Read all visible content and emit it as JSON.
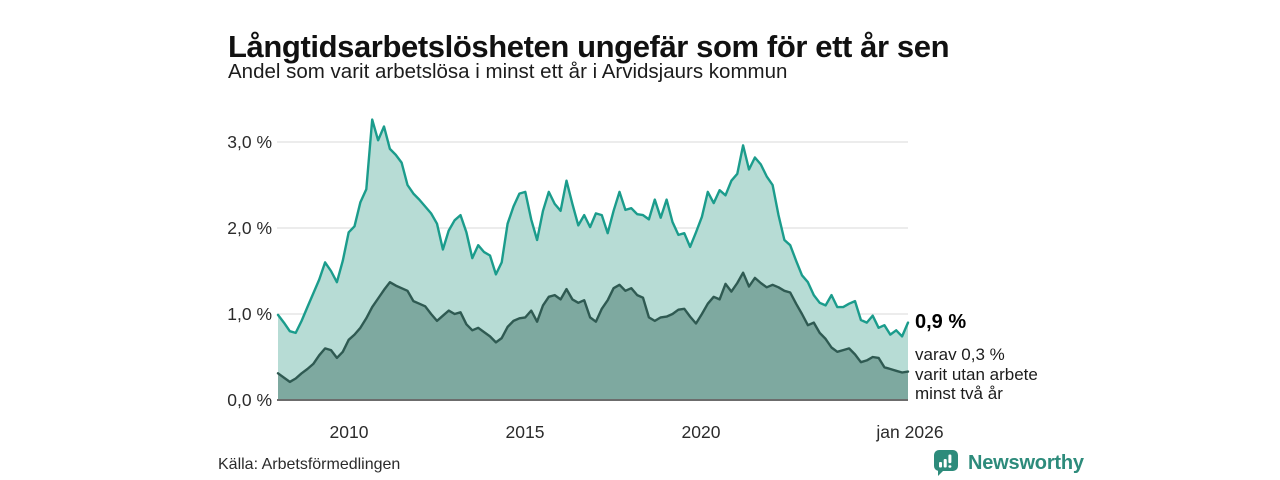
{
  "header": {
    "title": "Långtidsarbetslösheten ungefär som för ett år sen",
    "subtitle": "Andel som varit arbetslösa i minst ett år i Arvidsjaurs kommun"
  },
  "chart_data": {
    "type": "area",
    "title": "Långtidsarbetslösheten ungefär som för ett år sen",
    "subtitle": "Andel som varit arbetslösa i minst ett år i Arvidsjaurs kommun",
    "unit": "percent",
    "x_start": "jan 2008",
    "x_end": "jan 2026",
    "sample_interval_months": 2,
    "ylim": [
      0,
      3.5
    ],
    "grid": "horizontal",
    "legend_position": "right-annotation",
    "y_ticks": [
      {
        "label": "0,0 %",
        "value": 0
      },
      {
        "label": "1,0 %",
        "value": 1
      },
      {
        "label": "2,0 %",
        "value": 2
      },
      {
        "label": "3,0 %",
        "value": 3
      }
    ],
    "x_ticks": [
      {
        "label": "2010"
      },
      {
        "label": "2015"
      },
      {
        "label": "2020"
      },
      {
        "label": "jan 2026"
      }
    ],
    "series": [
      {
        "name": "Arbetslösa minst ett år",
        "latest_value": 0.9,
        "latest_label": "0,9 %",
        "line_color": "#1b9c8c",
        "fill_color": "#b7dcd5",
        "values": [
          0.99,
          0.9,
          0.8,
          0.78,
          0.92,
          1.08,
          1.24,
          1.4,
          1.6,
          1.5,
          1.37,
          1.62,
          1.95,
          2.02,
          2.3,
          2.45,
          3.26,
          3.02,
          3.18,
          2.92,
          2.85,
          2.76,
          2.5,
          2.4,
          2.33,
          2.25,
          2.17,
          2.05,
          1.75,
          1.97,
          2.09,
          2.15,
          1.95,
          1.65,
          1.8,
          1.72,
          1.68,
          1.46,
          1.6,
          2.05,
          2.25,
          2.4,
          2.42,
          2.1,
          1.86,
          2.2,
          2.42,
          2.28,
          2.2,
          2.55,
          2.28,
          2.03,
          2.15,
          2.01,
          2.17,
          2.15,
          1.94,
          2.2,
          2.42,
          2.21,
          2.23,
          2.16,
          2.15,
          2.1,
          2.33,
          2.12,
          2.33,
          2.07,
          1.92,
          1.94,
          1.78,
          1.95,
          2.13,
          2.42,
          2.29,
          2.44,
          2.38,
          2.55,
          2.63,
          2.96,
          2.68,
          2.82,
          2.74,
          2.6,
          2.5,
          2.15,
          1.86,
          1.8,
          1.62,
          1.45,
          1.37,
          1.22,
          1.13,
          1.1,
          1.22,
          1.08,
          1.08,
          1.12,
          1.15,
          0.93,
          0.9,
          0.98,
          0.84,
          0.87,
          0.76,
          0.81,
          0.74,
          0.9
        ]
      },
      {
        "name": "Arbetslösa minst två år",
        "latest_value": 0.33,
        "latest_label": "0,3 %",
        "line_color": "#2f5a52",
        "fill_color": "#7ea9a0",
        "values": [
          0.31,
          0.26,
          0.21,
          0.25,
          0.31,
          0.36,
          0.42,
          0.52,
          0.6,
          0.58,
          0.49,
          0.56,
          0.7,
          0.76,
          0.84,
          0.95,
          1.08,
          1.18,
          1.28,
          1.37,
          1.33,
          1.3,
          1.27,
          1.15,
          1.12,
          1.09,
          1.0,
          0.92,
          0.98,
          1.04,
          1.0,
          1.02,
          0.88,
          0.81,
          0.84,
          0.79,
          0.74,
          0.67,
          0.72,
          0.85,
          0.92,
          0.95,
          0.96,
          1.04,
          0.91,
          1.1,
          1.2,
          1.22,
          1.17,
          1.29,
          1.17,
          1.13,
          1.16,
          0.96,
          0.91,
          1.06,
          1.16,
          1.3,
          1.34,
          1.27,
          1.3,
          1.22,
          1.19,
          0.96,
          0.92,
          0.96,
          0.97,
          1.0,
          1.05,
          1.06,
          0.97,
          0.89,
          1.0,
          1.12,
          1.2,
          1.17,
          1.35,
          1.26,
          1.36,
          1.48,
          1.32,
          1.42,
          1.36,
          1.31,
          1.34,
          1.31,
          1.27,
          1.25,
          1.12,
          1.0,
          0.87,
          0.9,
          0.78,
          0.71,
          0.61,
          0.56,
          0.58,
          0.6,
          0.53,
          0.44,
          0.46,
          0.5,
          0.49,
          0.38,
          0.36,
          0.34,
          0.32,
          0.33
        ]
      }
    ],
    "colors": {
      "grid": "#e0e0e0",
      "axis": "#3c3c3c",
      "background": "#ffffff"
    }
  },
  "annotation": {
    "headline": "0,9 %",
    "lines": [
      "varav 0,3 %",
      "varit utan arbete",
      "minst två år"
    ]
  },
  "source_label": "Källa: Arbetsförmedlingen",
  "branding": {
    "name": "Newsworthy",
    "accent": "#2d8b7b"
  }
}
